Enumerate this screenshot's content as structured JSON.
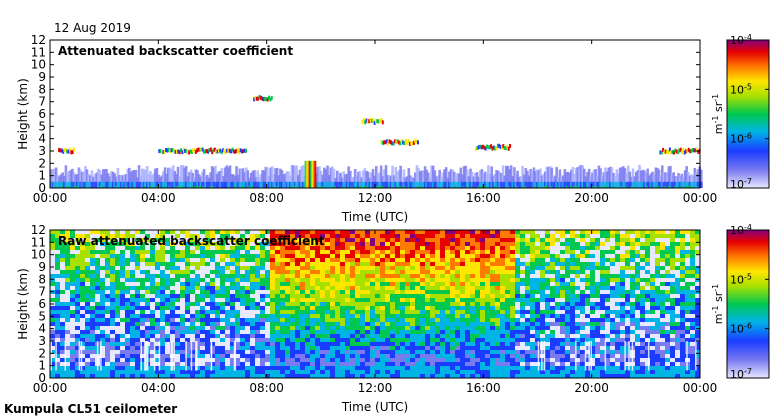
{
  "date_label": "12 Aug 2019",
  "footer": "Kumpula CL51 ceilometer",
  "chart_data": [
    {
      "type": "heatmap",
      "title": "Attenuated backscatter coefficient",
      "xlabel": "Time (UTC)",
      "ylabel": "Height (km)",
      "xticks": [
        "00:00",
        "04:00",
        "08:00",
        "12:00",
        "16:00",
        "20:00",
        "00:00"
      ],
      "xlim_hours": [
        0,
        24
      ],
      "ylim_km": [
        0,
        12
      ],
      "yticks": [
        0,
        1,
        2,
        3,
        4,
        5,
        6,
        7,
        8,
        9,
        10,
        11,
        12
      ],
      "colorbar": {
        "label_base": "m",
        "label_exp1": "-1",
        "label_mid": " sr",
        "label_exp2": "-1",
        "ticks": [
          {
            "base": "10",
            "exp": "-4"
          },
          {
            "base": "10",
            "exp": "-5"
          },
          {
            "base": "10",
            "exp": "-6"
          },
          {
            "base": "10",
            "exp": "-7"
          }
        ],
        "scale": "log",
        "range": [
          1e-07,
          0.0001
        ]
      },
      "cloud_layers": [
        {
          "t_start": 0.3,
          "t_end": 0.9,
          "height_km": 3.0
        },
        {
          "t_start": 4.0,
          "t_end": 7.2,
          "height_km": 3.0
        },
        {
          "t_start": 7.5,
          "t_end": 8.2,
          "height_km": 7.3
        },
        {
          "t_start": 11.5,
          "t_end": 12.3,
          "height_km": 5.4
        },
        {
          "t_start": 12.2,
          "t_end": 13.6,
          "height_km": 3.7
        },
        {
          "t_start": 15.7,
          "t_end": 17.0,
          "height_km": 3.3
        },
        {
          "t_start": 22.5,
          "t_end": 24.0,
          "height_km": 3.0
        }
      ],
      "boundary_layer_top_km": 1.5
    },
    {
      "type": "heatmap",
      "title": "Raw attenuated backscatter coefficient",
      "xlabel": "Time (UTC)",
      "ylabel": "Height (km)",
      "xticks": [
        "00:00",
        "04:00",
        "08:00",
        "12:00",
        "16:00",
        "20:00",
        "00:00"
      ],
      "xlim_hours": [
        0,
        24
      ],
      "ylim_km": [
        0,
        12
      ],
      "yticks": [
        0,
        1,
        2,
        3,
        4,
        5,
        6,
        7,
        8,
        9,
        10,
        11,
        12
      ],
      "colorbar": {
        "label_base": "m",
        "label_exp1": "-1",
        "label_mid": " sr",
        "label_exp2": "-1",
        "ticks": [
          {
            "base": "10",
            "exp": "-4"
          },
          {
            "base": "10",
            "exp": "-5"
          },
          {
            "base": "10",
            "exp": "-6"
          },
          {
            "base": "10",
            "exp": "-7"
          }
        ],
        "scale": "log",
        "range": [
          1e-07,
          0.0001
        ]
      },
      "noisy_band_hours": [
        8,
        17
      ]
    }
  ]
}
